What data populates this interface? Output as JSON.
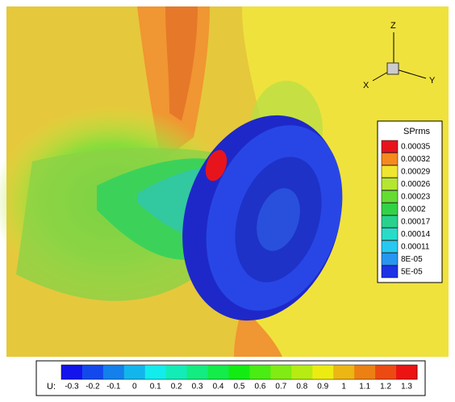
{
  "triad": {
    "z": "Z",
    "x": "X",
    "y": "Y"
  },
  "legend": {
    "title": "SPrms",
    "levels": [
      {
        "label": "0.00035",
        "color": "#e8141c"
      },
      {
        "label": "0.00032",
        "color": "#f58a1e"
      },
      {
        "label": "0.00029",
        "color": "#f0e632"
      },
      {
        "label": "0.00026",
        "color": "#b4e632"
      },
      {
        "label": "0.00023",
        "color": "#64dc32"
      },
      {
        "label": "0.0002",
        "color": "#32d246"
      },
      {
        "label": "0.00017",
        "color": "#28d28c"
      },
      {
        "label": "0.00014",
        "color": "#28dcc8"
      },
      {
        "label": "0.00011",
        "color": "#28c8f0"
      },
      {
        "label": "8E-05",
        "color": "#2896f0"
      },
      {
        "label": "5E-05",
        "color": "#1e32e6"
      }
    ]
  },
  "colorbar": {
    "label": "U:",
    "ticks": [
      "-0.3",
      "-0.2",
      "-0.1",
      "0",
      "0.1",
      "0.2",
      "0.3",
      "0.4",
      "0.5",
      "0.6",
      "0.7",
      "0.8",
      "0.9",
      "1",
      "1.1",
      "1.2",
      "1.3"
    ]
  }
}
